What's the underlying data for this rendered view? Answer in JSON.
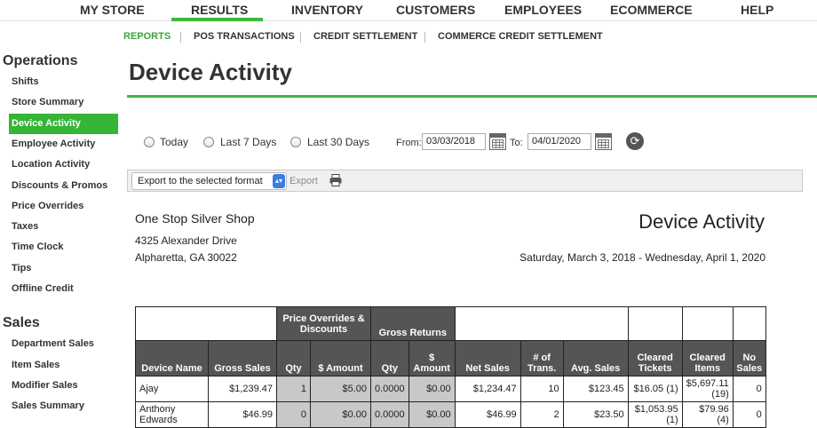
{
  "top_nav": {
    "items": [
      "MY STORE",
      "RESULTS",
      "INVENTORY",
      "CUSTOMERS",
      "EMPLOYEES",
      "ECOMMERCE",
      "HELP"
    ],
    "active": "RESULTS"
  },
  "sub_nav": {
    "items": [
      "REPORTS",
      "POS TRANSACTIONS",
      "CREDIT SETTLEMENT",
      "COMMERCE CREDIT SETTLEMENT"
    ],
    "active": "REPORTS"
  },
  "sidebar": {
    "operations_heading": "Operations",
    "operations": [
      "Shifts",
      "Store Summary",
      "Device Activity",
      "Employee Activity",
      "Location Activity",
      "Discounts & Promos",
      "Price Overrides",
      "Taxes",
      "Time Clock",
      "Tips",
      "Offline Credit"
    ],
    "sales_heading": "Sales",
    "sales": [
      "Department Sales",
      "Item Sales",
      "Modifier Sales",
      "Sales Summary"
    ],
    "active": "Device Activity"
  },
  "page_title": "Device Activity",
  "filters": {
    "ranges": [
      "Today",
      "Last 7 Days",
      "Last 30 Days"
    ],
    "from_label": "From:",
    "from_value": "03/03/2018",
    "to_label": "To:",
    "to_value": "04/01/2020"
  },
  "export": {
    "select_value": "Export to the selected format",
    "button": "Export"
  },
  "report": {
    "shop_name": "One Stop Silver Shop",
    "address1": "4325 Alexander Drive",
    "address2": "Alpharetta, GA 30022",
    "title": "Device Activity",
    "date_range": "Saturday, March 3, 2018 - Wednesday, April 1, 2020"
  },
  "table": {
    "group_headers": [
      "Price Overrides & Discounts",
      "Gross Returns"
    ],
    "columns": [
      "Device Name",
      "Gross Sales",
      "Qty",
      "$ Amount",
      "Qty",
      "$ Amount",
      "Net Sales",
      "# of Trans.",
      "Avg. Sales",
      "Cleared Tickets",
      "Cleared Items",
      "No Sales"
    ],
    "rows": [
      [
        "Ajay",
        "$1,239.47",
        "1",
        "$5.00",
        "0.0000",
        "$0.00",
        "$1,234.47",
        "10",
        "$123.45",
        "$16.05 (1)",
        "$5,697.11 (19)",
        "0"
      ],
      [
        "Anthony Edwards",
        "$46.99",
        "0",
        "$0.00",
        "0.0000",
        "$0.00",
        "$46.99",
        "2",
        "$23.50",
        "$1,053.95 (1)",
        "$79.96 (4)",
        "0"
      ]
    ]
  },
  "colors": {
    "accent": "#3db83d",
    "header": "#555555",
    "shade": "#c8c8c8"
  }
}
